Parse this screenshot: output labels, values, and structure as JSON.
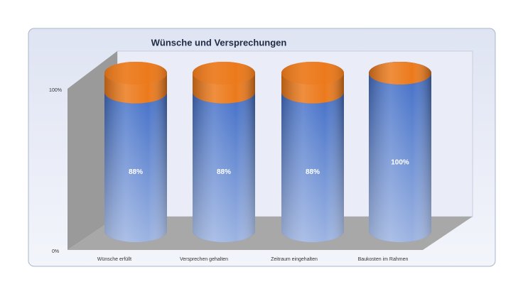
{
  "chart_data": {
    "type": "bar",
    "stacked": true,
    "title": "Wünsche und Versprechungen",
    "categories": [
      "Wünsche erfüllt",
      "Versprechen gehalten",
      "Zeitraum eingehalten",
      "Baukosten im Rahmen"
    ],
    "series": [
      {
        "color": "#4470c8",
        "values": [
          88,
          88,
          88,
          100
        ],
        "value_labels": [
          "88%",
          "88%",
          "88%",
          "100%"
        ]
      },
      {
        "color": "#ec7a1c",
        "values": [
          12,
          12,
          12,
          0
        ]
      }
    ],
    "ylim": [
      0,
      100
    ],
    "yticks": [
      {
        "value": 0,
        "label": "0%"
      },
      {
        "value": 100,
        "label": "100%"
      }
    ]
  }
}
